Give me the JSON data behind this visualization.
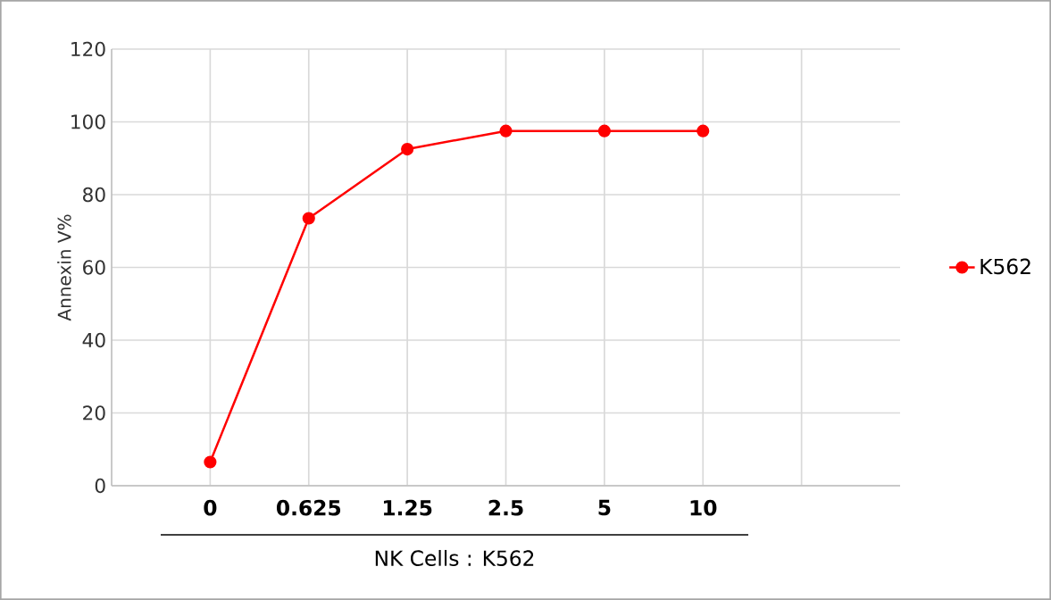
{
  "chart_data": {
    "type": "line",
    "xlabel": "NK Cells : K562",
    "ylabel": "Annexin V%",
    "categories": [
      "0",
      "0.625",
      "1.25",
      "2.5",
      "5",
      "10",
      null
    ],
    "series": [
      {
        "name": "K562",
        "color": "#ff0000",
        "values": [
          6.5,
          73.5,
          92.5,
          97.5,
          97.5,
          97.5,
          null
        ]
      }
    ],
    "ylim": [
      0,
      120
    ],
    "yticks": [
      0,
      20,
      40,
      60,
      80,
      100,
      120
    ],
    "grid": true,
    "legend": "right",
    "marker": "circle",
    "line_style": "solid"
  }
}
